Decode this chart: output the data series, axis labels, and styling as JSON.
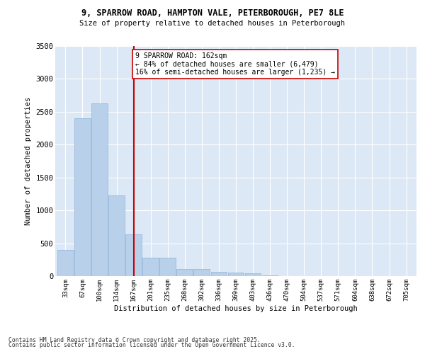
{
  "title_line1": "9, SPARROW ROAD, HAMPTON VALE, PETERBOROUGH, PE7 8LE",
  "title_line2": "Size of property relative to detached houses in Peterborough",
  "xlabel": "Distribution of detached houses by size in Peterborough",
  "ylabel": "Number of detached properties",
  "bar_color": "#b8d0ea",
  "bar_edge_color": "#90b4d8",
  "bg_color": "#dce8f5",
  "grid_color": "#ffffff",
  "property_line_x": 167,
  "property_line_color": "#cc0000",
  "annotation_text": "9 SPARROW ROAD: 162sqm\n← 84% of detached houses are smaller (6,479)\n16% of semi-detached houses are larger (1,235) →",
  "annotation_box_color": "#ffffff",
  "annotation_box_edge": "#cc0000",
  "categories": [
    "33sqm",
    "67sqm",
    "100sqm",
    "134sqm",
    "167sqm",
    "201sqm",
    "235sqm",
    "268sqm",
    "302sqm",
    "336sqm",
    "369sqm",
    "403sqm",
    "436sqm",
    "470sqm",
    "504sqm",
    "537sqm",
    "571sqm",
    "604sqm",
    "638sqm",
    "672sqm",
    "705sqm"
  ],
  "bin_edges": [
    0,
    1,
    2,
    3,
    4,
    5,
    6,
    7,
    8,
    9,
    10,
    11,
    12,
    13,
    14,
    15,
    16,
    17,
    18,
    19,
    20
  ],
  "values": [
    400,
    2400,
    2625,
    1230,
    640,
    280,
    280,
    110,
    110,
    60,
    55,
    40,
    10,
    5,
    5,
    0,
    0,
    0,
    0,
    0,
    0
  ],
  "ylim": [
    0,
    3500
  ],
  "yticks": [
    0,
    500,
    1000,
    1500,
    2000,
    2500,
    3000,
    3500
  ],
  "footer_line1": "Contains HM Land Registry data © Crown copyright and database right 2025.",
  "footer_line2": "Contains public sector information licensed under the Open Government Licence v3.0."
}
